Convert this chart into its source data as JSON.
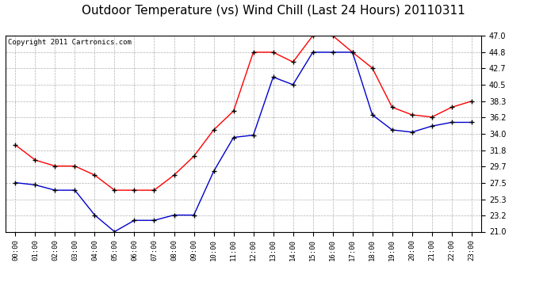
{
  "title": "Outdoor Temperature (vs) Wind Chill (Last 24 Hours) 20110311",
  "copyright": "Copyright 2011 Cartronics.com",
  "x_labels": [
    "00:00",
    "01:00",
    "02:00",
    "03:00",
    "04:00",
    "05:00",
    "06:00",
    "07:00",
    "08:00",
    "09:00",
    "10:00",
    "11:00",
    "12:00",
    "13:00",
    "14:00",
    "15:00",
    "16:00",
    "17:00",
    "18:00",
    "19:00",
    "20:00",
    "21:00",
    "22:00",
    "23:00"
  ],
  "temp_red": [
    32.5,
    30.5,
    29.7,
    29.7,
    28.5,
    26.5,
    26.5,
    26.5,
    28.5,
    31.0,
    34.5,
    37.0,
    44.8,
    44.8,
    43.5,
    47.0,
    47.0,
    44.8,
    42.7,
    37.5,
    36.5,
    36.2,
    37.5,
    38.3
  ],
  "temp_blue": [
    27.5,
    27.2,
    26.5,
    26.5,
    23.2,
    21.0,
    22.5,
    22.5,
    23.2,
    23.2,
    29.0,
    33.5,
    33.8,
    41.5,
    40.5,
    44.8,
    44.8,
    44.8,
    36.5,
    34.5,
    34.2,
    35.0,
    35.5,
    35.5
  ],
  "ylim": [
    21.0,
    47.0
  ],
  "yticks": [
    21.0,
    23.2,
    25.3,
    27.5,
    29.7,
    31.8,
    34.0,
    36.2,
    38.3,
    40.5,
    42.7,
    44.8,
    47.0
  ],
  "red_color": "#ff0000",
  "blue_color": "#0000cc",
  "background_color": "#ffffff",
  "grid_color": "#b0b0b0",
  "title_fontsize": 11,
  "copyright_fontsize": 6.5,
  "tick_fontsize": 7,
  "xtick_fontsize": 6.5
}
